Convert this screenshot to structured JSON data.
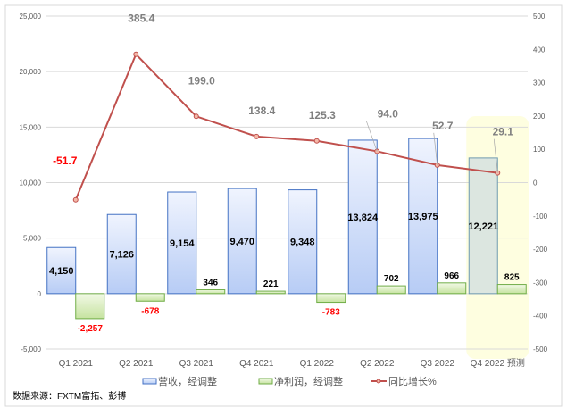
{
  "chart_data": {
    "type": "bar+line",
    "categories": [
      "Q1 2021",
      "Q2 2021",
      "Q3 2021",
      "Q4 2021",
      "Q1 2022",
      "Q2 2022",
      "Q3 2022",
      "Q4 2022 预测"
    ],
    "series": [
      {
        "name": "营收，经调整",
        "type": "bar",
        "axis": "left",
        "color": "#4472c4",
        "values": [
          4150,
          7126,
          9154,
          9470,
          9348,
          13824,
          13975,
          12221
        ],
        "labels": [
          "4,150",
          "7,126",
          "9,154",
          "9,470",
          "9,348",
          "13,824",
          "13,975",
          "12,221"
        ]
      },
      {
        "name": "净利润，经调整",
        "type": "bar",
        "axis": "left",
        "color": "#70ad47",
        "values": [
          -2257,
          -678,
          346,
          221,
          -783,
          702,
          966,
          825
        ],
        "labels": [
          "-2,257",
          "-678",
          "346",
          "221",
          "-783",
          "702",
          "966",
          "825"
        ]
      },
      {
        "name": "同比增长%",
        "type": "line",
        "axis": "right",
        "color": "#c0504d",
        "values": [
          -51.7,
          385.4,
          199.0,
          138.4,
          125.3,
          94.0,
          52.7,
          29.1
        ],
        "labels": [
          "-51.7",
          "385.4",
          "199.0",
          "138.4",
          "125.3",
          "94.0",
          "52.7",
          "29.1"
        ]
      }
    ],
    "ylim": [
      -5000,
      25000
    ],
    "y2lim": [
      -500,
      500
    ],
    "yticks": [
      "-5,000",
      "0",
      "5,000",
      "10,000",
      "15,000",
      "20,000",
      "25,000"
    ],
    "y2ticks": [
      "-500",
      "-400",
      "-300",
      "-200",
      "-100",
      "0",
      "100",
      "200",
      "300",
      "400",
      "500"
    ],
    "grid": true,
    "legend": "bottom",
    "highlight_category": "Q4 2022 预测",
    "highlight_color": "#fefee0",
    "negative_label_color": "#ff0000"
  },
  "source": "数据来源：FXTM富拓、彭博"
}
